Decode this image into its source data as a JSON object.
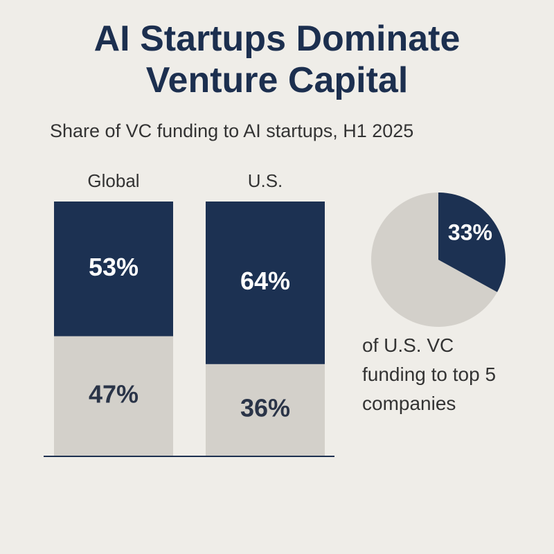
{
  "chart_data": [
    {
      "type": "stacked_bar",
      "title": "AI Startups Dominate Venture Capital",
      "subtitle": "Share of VC funding to AI startups, H1 2025",
      "categories": [
        "Global",
        "U.S."
      ],
      "series": [
        {
          "color": "#1c3152",
          "values": [
            53,
            64
          ],
          "value_labels": [
            "53%",
            "64%"
          ]
        },
        {
          "color": "#d3d0ca",
          "values": [
            47,
            36
          ],
          "value_labels": [
            "47%",
            "36%"
          ]
        }
      ]
    },
    {
      "type": "pie",
      "values": [
        33
      ],
      "value_labels": [
        "33%"
      ],
      "color": "#1c3152",
      "rest_color": "#d3d0ca",
      "caption": "of U.S. VC funding to top 5 companies"
    }
  ]
}
